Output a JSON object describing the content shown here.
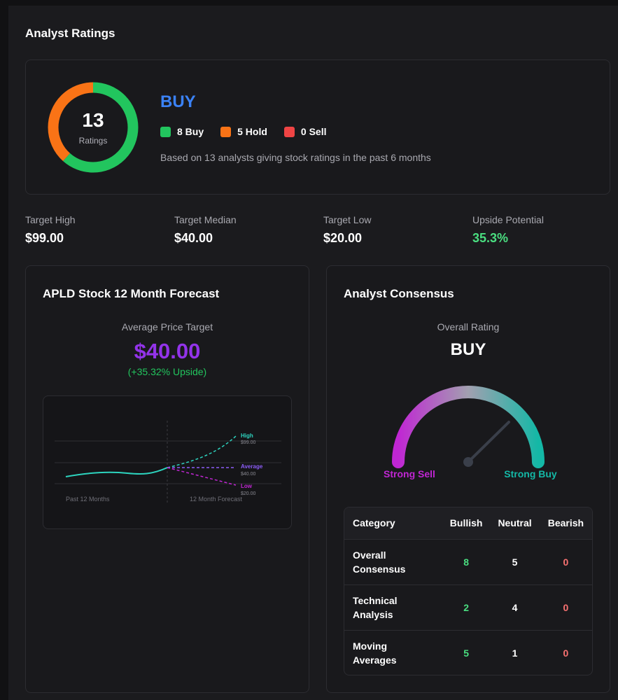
{
  "header": {
    "title": "Analyst Ratings"
  },
  "ratings": {
    "total": "13",
    "total_label": "Ratings",
    "rating": "BUY",
    "legend": [
      {
        "label": "8 Buy",
        "color": "#22c55e"
      },
      {
        "label": "5 Hold",
        "color": "#f97316"
      },
      {
        "label": "0 Sell",
        "color": "#ef4444"
      }
    ],
    "counts": {
      "buy": 8,
      "hold": 5,
      "sell": 0
    },
    "basis": "Based on 13 analysts giving stock ratings in the past 6 months"
  },
  "targets": [
    {
      "label": "Target High",
      "value": "$99.00"
    },
    {
      "label": "Target Median",
      "value": "$40.00"
    },
    {
      "label": "Target Low",
      "value": "$20.00"
    },
    {
      "label": "Upside Potential",
      "value": "35.3%",
      "color": "#4ade80"
    }
  ],
  "forecast": {
    "title": "APLD Stock 12 Month Forecast",
    "avg_label": "Average Price Target",
    "avg_value": "$40.00",
    "upside": "(+35.32% Upside)",
    "chart": {
      "high_label": "High",
      "high_value": "$99.00",
      "avg_label": "Average",
      "avg_value": "$40.00",
      "low_label": "Low",
      "low_value": "$20.00",
      "past_label": "Past 12 Months",
      "forecast_label": "12 Month Forecast"
    }
  },
  "consensus": {
    "title": "Analyst Consensus",
    "overall_label": "Overall Rating",
    "overall_value": "BUY",
    "gauge_left": "Strong Sell",
    "gauge_right": "Strong Buy",
    "table": {
      "headers": [
        "Category",
        "Bullish",
        "Neutral",
        "Bearish"
      ],
      "rows": [
        {
          "line1": "Overall",
          "line2": "Consensus",
          "bullish": "8",
          "neutral": "5",
          "bearish": "0"
        },
        {
          "line1": "Technical",
          "line2": "Analysis",
          "bullish": "2",
          "neutral": "4",
          "bearish": "0"
        },
        {
          "line1": "Moving",
          "line2": "Averages",
          "bullish": "5",
          "neutral": "1",
          "bearish": "0"
        }
      ]
    }
  },
  "colors": {
    "buy": "#22c55e",
    "hold": "#f97316",
    "sell": "#ef4444",
    "accent_blue": "#3b82f6",
    "accent_purple": "#9333ea",
    "chart_teal": "#2dd4bf",
    "chart_violet": "#8b5cf6",
    "chart_magenta": "#c026d3"
  }
}
